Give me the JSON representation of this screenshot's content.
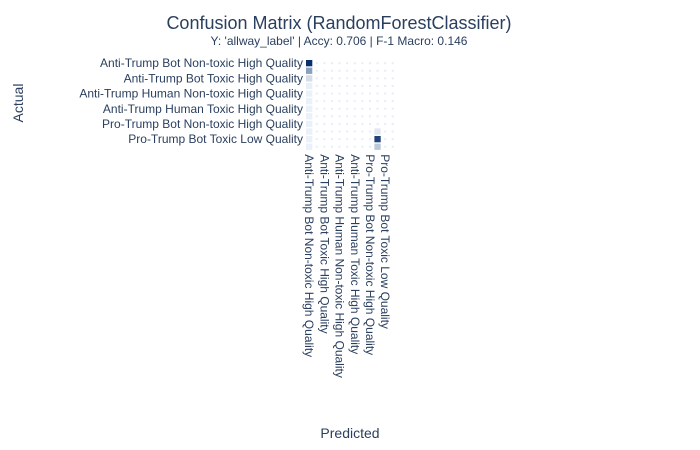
{
  "chart_data": {
    "type": "heatmap",
    "title": "Confusion Matrix (RandomForestClassifier)",
    "subtitle": "Y: 'allway_label' | Accy: 0.706 | F-1 Macro: 0.146",
    "xlabel": "Predicted",
    "ylabel": "Actual",
    "labels_visible": [
      "Anti-Trump Bot Non-toxic High Quality",
      "Anti-Trump Bot Toxic High Quality",
      "Anti-Trump Human Non-toxic High Quality",
      "Anti-Trump Human Toxic High Quality",
      "Pro-Trump Bot Non-toxic High Quality",
      "Pro-Trump Bot Toxic Low Quality"
    ],
    "matrix_size": 12,
    "label_step": 2,
    "cells": [
      {
        "row": 0,
        "col": 0,
        "value": 1.0
      },
      {
        "row": 1,
        "col": 0,
        "value": 0.45
      },
      {
        "row": 2,
        "col": 0,
        "value": 0.15
      },
      {
        "row": 3,
        "col": 0,
        "value": 0.06
      },
      {
        "row": 4,
        "col": 0,
        "value": 0.05
      },
      {
        "row": 5,
        "col": 0,
        "value": 0.05
      },
      {
        "row": 6,
        "col": 0,
        "value": 0.05
      },
      {
        "row": 7,
        "col": 0,
        "value": 0.05
      },
      {
        "row": 8,
        "col": 0,
        "value": 0.05
      },
      {
        "row": 9,
        "col": 0,
        "value": 0.05
      },
      {
        "row": 10,
        "col": 0,
        "value": 0.05
      },
      {
        "row": 11,
        "col": 0,
        "value": 0.05
      },
      {
        "row": 10,
        "col": 9,
        "value": 0.9
      },
      {
        "row": 11,
        "col": 9,
        "value": 0.25
      },
      {
        "row": 9,
        "col": 9,
        "value": 0.1
      }
    ],
    "background_value": 0.07,
    "colorscale": [
      "#f7fbff",
      "#08306b"
    ],
    "grid": false,
    "legend": "none"
  }
}
